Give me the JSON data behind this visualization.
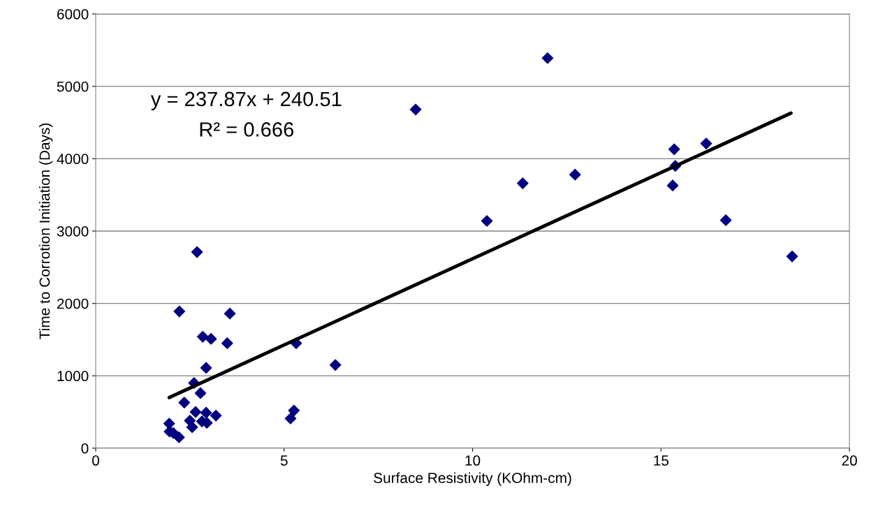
{
  "chart_data": {
    "type": "scatter",
    "xlabel": "Surface Resistivity (KOhm-cm)",
    "ylabel": "Time to Corrotion Initiation (Days)",
    "xlim": [
      0,
      20
    ],
    "xticks": [
      0,
      5,
      10,
      15,
      20
    ],
    "ylim": [
      0,
      6000
    ],
    "yticks": [
      0,
      1000,
      2000,
      3000,
      4000,
      5000,
      6000
    ],
    "grid": "y",
    "legend": false,
    "marker": "diamond",
    "annotations": [
      "y = 237.87x + 240.51",
      "R² = 0.666"
    ],
    "series": [
      {
        "color": "#000080",
        "x": [
          2.22,
          2.69,
          2.84,
          3.06,
          3.49,
          3.56,
          2.93,
          2.61,
          2.78,
          2.35,
          2.65,
          2.93,
          3.19,
          2.5,
          2.82,
          2.95,
          2.56,
          1.95,
          1.96,
          2.06,
          2.21,
          5.17,
          5.26,
          5.32,
          6.36,
          8.49,
          11.99,
          10.38,
          11.33,
          12.72,
          15.35,
          16.2,
          15.38,
          15.31,
          16.72,
          18.48
        ],
        "values": [
          1890,
          2710,
          1540,
          1510,
          1450,
          1860,
          1110,
          900,
          760,
          630,
          500,
          490,
          450,
          380,
          370,
          350,
          290,
          340,
          230,
          210,
          150,
          410,
          520,
          1450,
          1150,
          4680,
          5390,
          3140,
          3660,
          3780,
          4130,
          4210,
          3900,
          3630,
          3150,
          2650
        ]
      },
      {
        "type": "line",
        "color": "#000000",
        "marker": "none",
        "line_style": "solid",
        "x": [
          1.95,
          18.45
        ],
        "values": [
          700,
          4630
        ]
      }
    ]
  }
}
